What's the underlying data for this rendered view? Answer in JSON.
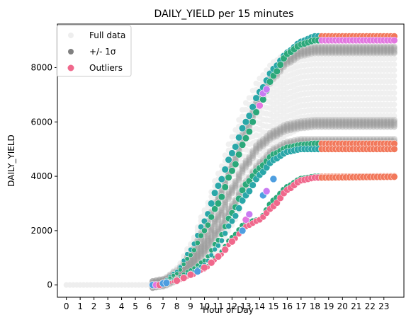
{
  "chart_data": {
    "type": "scatter",
    "title": "DAILY_YIELD per 15 minutes",
    "xlabel": "Hour of Day",
    "ylabel": "DAILY_YIELD",
    "xlim": [
      -0.65,
      24.45
    ],
    "ylim": [
      -450,
      9600
    ],
    "x_ticks": [
      "0",
      "1",
      "2",
      "3",
      "4",
      "5",
      "6",
      "7",
      "8",
      "9",
      "10",
      "11",
      "12",
      "13",
      "14",
      "15",
      "16",
      "17",
      "18",
      "19",
      "20",
      "21",
      "22",
      "23"
    ],
    "y_ticks": [
      0,
      2000,
      4000,
      6000,
      8000
    ],
    "grid": false,
    "legend_position": "top-left",
    "legend": [
      {
        "label": "Full data",
        "color": "#eeeeee"
      },
      {
        "label": "+/- 1σ",
        "color": "#808080"
      },
      {
        "label": "Outliers",
        "color": "#f0688c"
      }
    ],
    "colors": {
      "full_data": "#eeeeee",
      "sigma": "#9a9a9a",
      "outlier_palette": [
        "#f0688c",
        "#e377e0",
        "#c97bf2",
        "#4e9ee0",
        "#2aa7a8",
        "#2ba87a",
        "#f2785b",
        "#f78aa0"
      ]
    },
    "series": [
      {
        "name": "Full data",
        "style": "band",
        "x_start": 0,
        "x_end": 24,
        "step": 0.25,
        "baseline": [
          [
            0,
            0
          ],
          [
            6,
            0
          ],
          [
            7,
            60
          ],
          [
            8,
            160
          ],
          [
            9,
            380
          ],
          [
            10,
            700
          ],
          [
            11,
            1250
          ],
          [
            12,
            2200
          ],
          [
            13,
            3250
          ],
          [
            14,
            4300
          ],
          [
            15,
            5100
          ],
          [
            16,
            5550
          ],
          [
            17,
            5750
          ],
          [
            18,
            5800
          ],
          [
            23.75,
            5800
          ]
        ],
        "top": [
          [
            0,
            0
          ],
          [
            6,
            0
          ],
          [
            7,
            120
          ],
          [
            8,
            620
          ],
          [
            9,
            1500
          ],
          [
            10,
            2750
          ],
          [
            11,
            4100
          ],
          [
            12,
            5450
          ],
          [
            13,
            6700
          ],
          [
            14,
            7600
          ],
          [
            15,
            8200
          ],
          [
            16,
            8550
          ],
          [
            17,
            8700
          ],
          [
            18,
            8750
          ],
          [
            23.75,
            8750
          ]
        ]
      },
      {
        "name": "+/- 1σ",
        "style": "curves",
        "curves": [
          [
            [
              6,
              0
            ],
            [
              7,
              100
            ],
            [
              8,
              420
            ],
            [
              9,
              1050
            ],
            [
              10,
              2000
            ],
            [
              11,
              3150
            ],
            [
              12,
              4400
            ],
            [
              13,
              5700
            ],
            [
              14,
              6850
            ],
            [
              15,
              7700
            ],
            [
              16,
              8250
            ],
            [
              17,
              8550
            ],
            [
              18,
              8650
            ],
            [
              23.75,
              8650
            ]
          ],
          [
            [
              6,
              0
            ],
            [
              7,
              80
            ],
            [
              8,
              300
            ],
            [
              9,
              800
            ],
            [
              10,
              1550
            ],
            [
              11,
              2500
            ],
            [
              12,
              3500
            ],
            [
              13,
              4450
            ],
            [
              14,
              5150
            ],
            [
              15,
              5550
            ],
            [
              16,
              5800
            ],
            [
              17,
              5900
            ],
            [
              18,
              5950
            ],
            [
              23.75,
              5950
            ]
          ],
          [
            [
              6,
              0
            ],
            [
              7,
              70
            ],
            [
              8,
              250
            ],
            [
              9,
              650
            ],
            [
              10,
              1250
            ],
            [
              11,
              2000
            ],
            [
              12,
              2850
            ],
            [
              13,
              3700
            ],
            [
              14,
              4400
            ],
            [
              15,
              4900
            ],
            [
              16,
              5150
            ],
            [
              17,
              5250
            ],
            [
              18,
              5250
            ],
            [
              23.75,
              5250
            ]
          ]
        ]
      },
      {
        "name": "Outliers",
        "style": "curves",
        "curves": [
          [
            [
              6,
              0
            ],
            [
              6.5,
              0
            ],
            [
              7,
              120
            ],
            [
              8,
              500
            ],
            [
              9,
              1300
            ],
            [
              10,
              2350
            ],
            [
              11,
              3650
            ],
            [
              12,
              4850
            ],
            [
              13,
              6000
            ],
            [
              14,
              7100
            ],
            [
              15,
              7950
            ],
            [
              16,
              8550
            ],
            [
              17,
              8950
            ],
            [
              18,
              9150
            ],
            [
              23.75,
              9150
            ]
          ],
          [
            [
              6,
              0
            ],
            [
              6.5,
              0
            ],
            [
              7,
              100
            ],
            [
              8,
              420
            ],
            [
              9,
              1100
            ],
            [
              10,
              2000
            ],
            [
              11,
              3000
            ],
            [
              12,
              4200
            ],
            [
              13,
              5400
            ],
            [
              14,
              6600
            ],
            [
              15,
              7700
            ],
            [
              16,
              8500
            ],
            [
              17,
              8850
            ],
            [
              18,
              9000
            ],
            [
              23.75,
              9000
            ]
          ],
          [
            [
              6.5,
              0
            ],
            [
              7,
              70
            ],
            [
              8,
              250
            ],
            [
              9,
              550
            ],
            [
              10,
              900
            ],
            [
              11,
              1650
            ],
            [
              12,
              2650
            ],
            [
              13,
              3700
            ],
            [
              14,
              4300
            ],
            [
              15,
              4800
            ],
            [
              16,
              5050
            ],
            [
              17,
              5150
            ],
            [
              18,
              5200
            ],
            [
              23.75,
              5200
            ]
          ],
          [
            [
              6.5,
              0
            ],
            [
              7,
              60
            ],
            [
              8,
              200
            ],
            [
              9,
              450
            ],
            [
              10,
              750
            ],
            [
              11,
              1450
            ],
            [
              12,
              2350
            ],
            [
              13,
              3300
            ],
            [
              14,
              4050
            ],
            [
              15,
              4600
            ],
            [
              16,
              4900
            ],
            [
              17,
              5000
            ],
            [
              18,
              5000
            ],
            [
              23.75,
              5000
            ]
          ],
          [
            [
              6.5,
              0
            ],
            [
              7,
              50
            ],
            [
              8,
              150
            ],
            [
              9,
              350
            ],
            [
              10,
              600
            ],
            [
              11,
              1100
            ],
            [
              12,
              1750
            ],
            [
              13,
              2300
            ],
            [
              14,
              2400
            ],
            [
              15,
              3100
            ],
            [
              16,
              3600
            ],
            [
              17,
              3900
            ],
            [
              18,
              3980
            ],
            [
              23.75,
              4000
            ]
          ],
          [
            [
              6.5,
              0
            ],
            [
              7,
              50
            ],
            [
              8,
              140
            ],
            [
              9,
              320
            ],
            [
              10,
              560
            ],
            [
              11,
              1000
            ],
            [
              12,
              1600
            ],
            [
              13,
              2150
            ],
            [
              14,
              2400
            ],
            [
              15,
              2900
            ],
            [
              16,
              3500
            ],
            [
              17,
              3850
            ],
            [
              18,
              3950
            ],
            [
              23.75,
              3980
            ]
          ]
        ],
        "curve_colors": [
          [
            "#2aa7a8",
            "#f2785b"
          ],
          [
            "#2ba87a",
            "#e377e0"
          ],
          [
            "#2ba87a",
            "#f2785b"
          ],
          [
            "#2aa7a8",
            "#f2785b"
          ],
          [
            "#2ba87a",
            "#f2785b"
          ],
          [
            "#f0688c",
            "#f2785b"
          ]
        ],
        "special_points": [
          {
            "x": 6.25,
            "y": 0,
            "color": "#4e9ee0"
          },
          {
            "x": 6.5,
            "y": 0,
            "color": "#e377e0"
          },
          {
            "x": 6.75,
            "y": 0,
            "color": "#f0688c"
          },
          {
            "x": 7.0,
            "y": 60,
            "color": "#4e9ee0"
          },
          {
            "x": 7.25,
            "y": 80,
            "color": "#4e9ee0"
          },
          {
            "x": 8.0,
            "y": 160,
            "color": "#f0688c"
          },
          {
            "x": 8.5,
            "y": 260,
            "color": "#f0688c"
          },
          {
            "x": 9.0,
            "y": 380,
            "color": "#f0688c"
          },
          {
            "x": 9.5,
            "y": 500,
            "color": "#4e9ee0"
          },
          {
            "x": 10.0,
            "y": 640,
            "color": "#f0688c"
          },
          {
            "x": 10.5,
            "y": 820,
            "color": "#f0688c"
          },
          {
            "x": 11.0,
            "y": 1050,
            "color": "#f0688c"
          },
          {
            "x": 11.5,
            "y": 1300,
            "color": "#f0688c"
          },
          {
            "x": 12.0,
            "y": 1600,
            "color": "#f0688c"
          },
          {
            "x": 13.0,
            "y": 2400,
            "color": "#e377e0"
          },
          {
            "x": 13.25,
            "y": 2600,
            "color": "#c97bf2"
          },
          {
            "x": 14.0,
            "y": 6600,
            "color": "#e377e0"
          },
          {
            "x": 14.25,
            "y": 7050,
            "color": "#c97bf2"
          },
          {
            "x": 14.5,
            "y": 7200,
            "color": "#c97bf2"
          },
          {
            "x": 14.25,
            "y": 3300,
            "color": "#4e9ee0"
          },
          {
            "x": 14.5,
            "y": 3450,
            "color": "#c97bf2"
          },
          {
            "x": 12.75,
            "y": 2000,
            "color": "#4e9ee0"
          },
          {
            "x": 15.0,
            "y": 3900,
            "color": "#4e9ee0"
          }
        ]
      }
    ]
  }
}
